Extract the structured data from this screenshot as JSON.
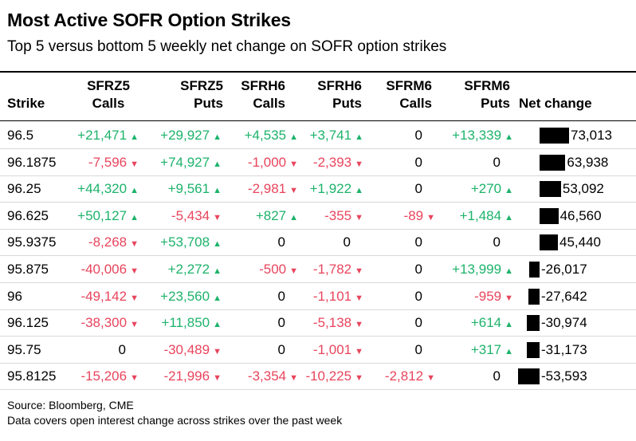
{
  "chart_data": {
    "type": "table",
    "title": "Most Active SOFR Option Strikes",
    "subtitle": "Top 5 versus bottom 5 weekly net change on SOFR option strikes",
    "columns": {
      "strike": "Strike",
      "sfrz5_calls": [
        "SFRZ5",
        "Calls"
      ],
      "sfrz5_puts": [
        "SFRZ5",
        "Puts"
      ],
      "sfrh6_calls": [
        "SFRH6",
        "Calls"
      ],
      "sfrh6_puts": [
        "SFRH6",
        "Puts"
      ],
      "sfrm6_calls": [
        "SFRM6",
        "Calls"
      ],
      "sfrm6_puts": [
        "SFRM6",
        "Puts"
      ],
      "net_change": "Net change"
    },
    "rows": [
      {
        "strike": "96.5",
        "cells": [
          "+21,471",
          "+29,927",
          "+4,535",
          "+3,741",
          "0",
          "+13,339"
        ],
        "net_change": 73013,
        "net_label": "73,013"
      },
      {
        "strike": "96.1875",
        "cells": [
          "-7,596",
          "+74,927",
          "-1,000",
          "-2,393",
          "0",
          "0"
        ],
        "net_change": 63938,
        "net_label": "63,938"
      },
      {
        "strike": "96.25",
        "cells": [
          "+44,320",
          "+9,561",
          "-2,981",
          "+1,922",
          "0",
          "+270"
        ],
        "net_change": 53092,
        "net_label": "53,092"
      },
      {
        "strike": "96.625",
        "cells": [
          "+50,127",
          "-5,434",
          "+827",
          "-355",
          "-89",
          "+1,484"
        ],
        "net_change": 46560,
        "net_label": "46,560"
      },
      {
        "strike": "95.9375",
        "cells": [
          "-8,268",
          "+53,708",
          "0",
          "0",
          "0",
          "0"
        ],
        "net_change": 45440,
        "net_label": "45,440"
      },
      {
        "strike": "95.875",
        "cells": [
          "-40,006",
          "+2,272",
          "-500",
          "-1,782",
          "0",
          "+13,999"
        ],
        "net_change": -26017,
        "net_label": "-26,017"
      },
      {
        "strike": "96",
        "cells": [
          "-49,142",
          "+23,560",
          "0",
          "-1,101",
          "0",
          "-959"
        ],
        "net_change": -27642,
        "net_label": "-27,642"
      },
      {
        "strike": "96.125",
        "cells": [
          "-38,300",
          "+11,850",
          "0",
          "-5,138",
          "0",
          "+614"
        ],
        "net_change": -30974,
        "net_label": "-30,974"
      },
      {
        "strike": "95.75",
        "cells": [
          "0",
          "-30,489",
          "0",
          "-1,001",
          "0",
          "+317"
        ],
        "net_change": -31173,
        "net_label": "-31,173"
      },
      {
        "strike": "95.8125",
        "cells": [
          "-15,206",
          "-21,996",
          "-3,354",
          "-10,225",
          "-2,812",
          "0"
        ],
        "net_change": -53593,
        "net_label": "-53,593"
      }
    ],
    "colors": {
      "positive": "#1db36b",
      "negative": "#e8455d",
      "bar": "#000000"
    }
  },
  "footer": {
    "source": "Source: Bloomberg, CME",
    "note": "Data covers open interest change across strikes over the past week"
  }
}
